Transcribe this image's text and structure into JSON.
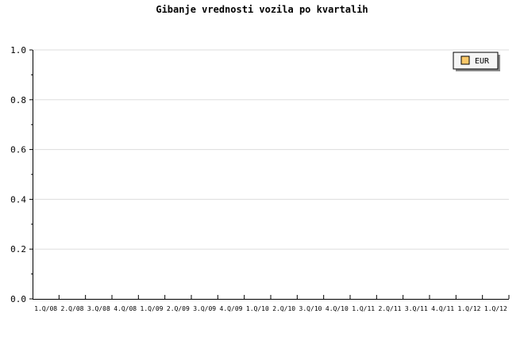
{
  "chart_data": {
    "type": "bar",
    "title": "Gibanje vrednosti vozila po kvartalih",
    "xlabel": "",
    "ylabel": "",
    "categories": [
      "1.Q/08",
      "2.Q/08",
      "3.Q/08",
      "4.Q/08",
      "1.Q/09",
      "2.Q/09",
      "3.Q/09",
      "4.Q/09",
      "1.Q/10",
      "2.Q/10",
      "3.Q/10",
      "4.Q/10",
      "1.Q/11",
      "2.Q/11",
      "3.Q/11",
      "4.Q/11",
      "1.Q/12",
      "1.Q/12"
    ],
    "series": [
      {
        "name": "EUR",
        "values": [
          null,
          null,
          null,
          null,
          null,
          null,
          null,
          null,
          null,
          null,
          null,
          null,
          null,
          null,
          null,
          null,
          null,
          null
        ],
        "color": "#f9c86a"
      }
    ],
    "ylim": [
      0,
      1
    ],
    "yticks": [
      "0.0",
      "0.2",
      "0.4",
      "0.6",
      "0.8",
      "1.0"
    ],
    "grid": true,
    "legend_position": "top-right"
  }
}
